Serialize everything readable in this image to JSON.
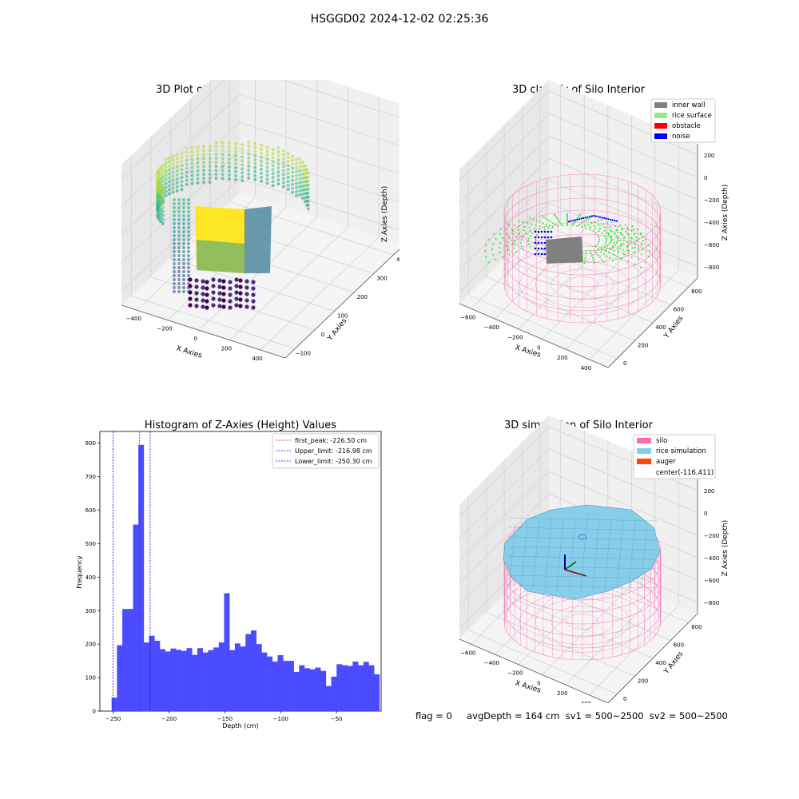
{
  "figure_title": "HSGGD02 2024-12-02 02:25:36",
  "footer_text": "flag = 0     avgDepth = 164 cm  sv1 = 500~2500  sv2 = 500~2500",
  "colors": {
    "histogram_bar": "#4b4bff",
    "first_peak_line": "#ff0000",
    "limit_lines": "#0000ff",
    "inner_wall": "#808080",
    "rice_surface": "#90ee90",
    "obstacle": "#ff0000",
    "noise": "#0000ff",
    "silo": "#ff69b4",
    "rice_simulation": "#87ceeb",
    "auger": "#ff4500",
    "pane": "#f0f0f0",
    "grid": "#d0d0d0"
  },
  "chart_data": [
    {
      "type": "scatter",
      "projection": "3d",
      "title": "3D Plot of Silo Interior(row data)",
      "xlabel": "X Axies",
      "ylabel": "Y Axies",
      "zlabel": "Z Axies (Depth)",
      "xticks": [
        "−400",
        "−200",
        "0",
        "200",
        "400"
      ],
      "yticks": [
        "−100",
        "0",
        "100",
        "200",
        "300",
        "400"
      ],
      "zticks": [
        "−50",
        "−100",
        "−150",
        "−200",
        "−250"
      ],
      "colormap": "viridis",
      "grid": true
    },
    {
      "type": "scatter",
      "projection": "3d",
      "title": "3D classify of Silo Interior",
      "xlabel": "X Axies",
      "ylabel": "Y Axies",
      "zlabel": "Z Axies (Depth)",
      "xticks": [
        "−600",
        "−400",
        "−200",
        "0",
        "200",
        "400"
      ],
      "yticks": [
        "0",
        "200",
        "400",
        "600",
        "800"
      ],
      "zticks": [
        "200",
        "0",
        "−200",
        "−400",
        "−600",
        "−800"
      ],
      "legend": [
        "inner wall",
        "rice surface",
        "obstacle",
        "noise"
      ],
      "legend_position": "top-right",
      "grid": true
    },
    {
      "type": "bar",
      "title": "Histogram of Z-Axies (Height) Values",
      "xlabel": "Depth (cm)",
      "ylabel": "Frequency",
      "xlim": [
        -262,
        -10
      ],
      "ylim": [
        0,
        835
      ],
      "xticks": [
        -250,
        -200,
        -150,
        -100,
        -50
      ],
      "xtick_labels": [
        "−250",
        "−200",
        "−150",
        "−100",
        "−50"
      ],
      "yticks": [
        0,
        100,
        200,
        300,
        400,
        500,
        600,
        700,
        800
      ],
      "bin_start": -251.5,
      "bin_width": 4.8,
      "values": [
        40,
        197,
        305,
        305,
        557,
        795,
        205,
        225,
        210,
        185,
        178,
        187,
        183,
        180,
        188,
        168,
        188,
        175,
        182,
        190,
        205,
        352,
        182,
        202,
        193,
        230,
        241,
        200,
        175,
        163,
        148,
        167,
        150,
        150,
        117,
        137,
        128,
        125,
        130,
        120,
        75,
        103,
        140,
        137,
        135,
        148,
        137,
        147,
        137,
        110
      ],
      "vlines": [
        {
          "x": -226.5,
          "label": "first_peak: -226.50 cm",
          "color": "#ff0000"
        },
        {
          "x": -216.98,
          "label": "Upper_limit: -216.98 cm",
          "color": "#0000ff"
        },
        {
          "x": -250.3,
          "label": "Lower_limit: -250.30 cm",
          "color": "#0000ff"
        }
      ],
      "legend_position": "top-right",
      "grid": false
    },
    {
      "type": "surface",
      "projection": "3d",
      "title": "3D simulation of Silo Interior",
      "xlabel": "X Axies",
      "ylabel": "Y Axies",
      "zlabel": "Z Axies (Depth)",
      "xticks": [
        "−600",
        "−400",
        "−200",
        "0",
        "200",
        "400"
      ],
      "yticks": [
        "0",
        "200",
        "400",
        "600",
        "800"
      ],
      "zticks": [
        "200",
        "0",
        "−200",
        "−400",
        "−600",
        "−800"
      ],
      "legend": [
        "silo",
        "rice simulation",
        "auger",
        "center(-116,411)"
      ],
      "legend_position": "top-right",
      "grid": true
    }
  ]
}
